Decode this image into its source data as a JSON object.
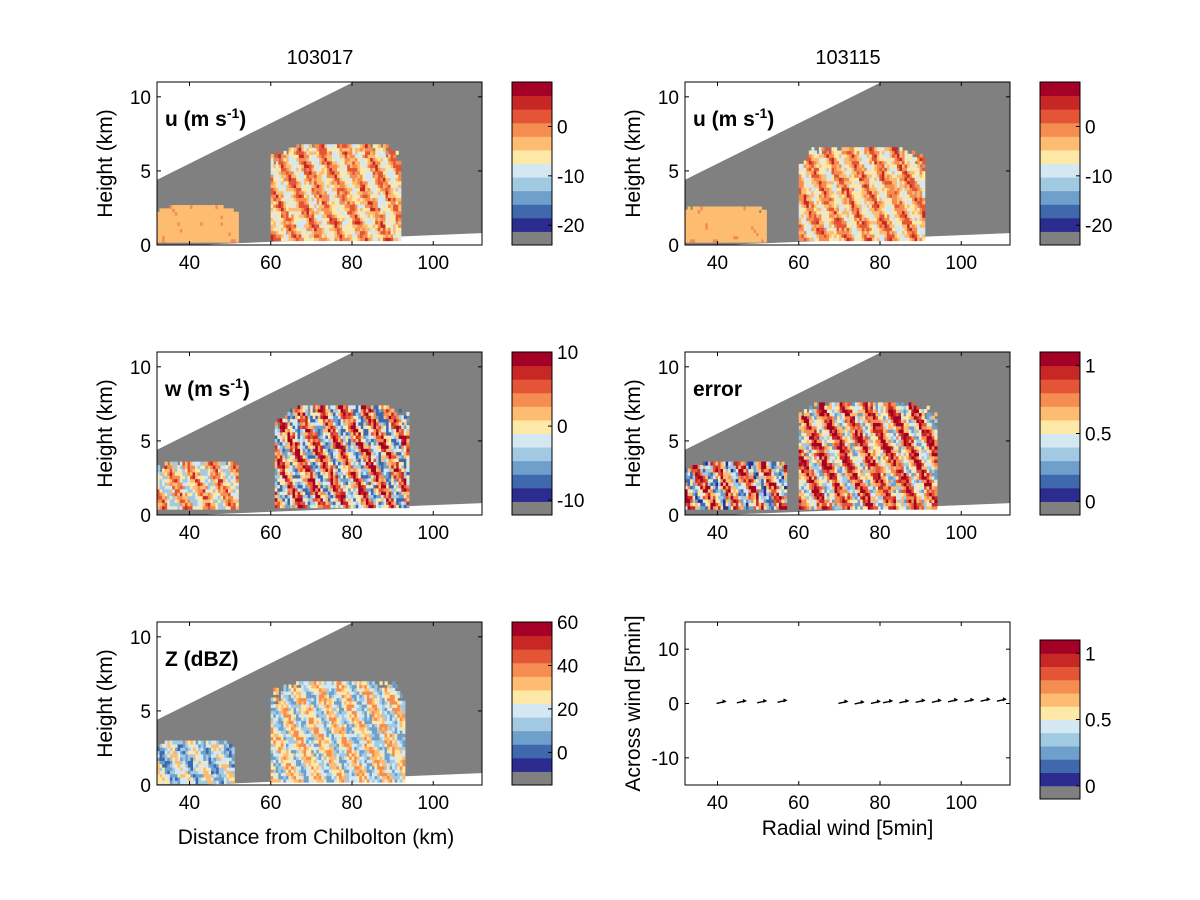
{
  "figure": {
    "column_titles": [
      "103017",
      "103115"
    ],
    "x_axis_label": "Distance from Chilbolton (km)",
    "y_axis_label": "Height (km)",
    "masked_color": "#808080",
    "colormap": [
      "#808080",
      "#2c2c90",
      "#3f68ad",
      "#6fa0cc",
      "#a2c9e2",
      "#d3e8f2",
      "#fde8a8",
      "#fdbc70",
      "#f58c50",
      "#e45436",
      "#c72725",
      "#a50026"
    ]
  },
  "chart_data": [
    {
      "id": "u-103017",
      "type": "heatmap",
      "inset_label": "u (m s",
      "inset_sup": "-1",
      "inset_tail": ")",
      "column": 0,
      "row": 0,
      "xlim": [
        32,
        112
      ],
      "ylim": [
        0,
        11
      ],
      "x_ticks": [
        40,
        60,
        80,
        100
      ],
      "y_ticks": [
        0,
        5,
        10
      ],
      "colorbar": {
        "ticks": [
          0,
          -10,
          -20
        ],
        "tick_labels": [
          "0",
          "-10",
          "-20"
        ],
        "range": [
          -24,
          9
        ]
      },
      "dominant_value": -4,
      "echoes": [
        {
          "x": [
            32,
            52
          ],
          "y": [
            0.2,
            2.7
          ],
          "v": [
            -5,
            -3
          ]
        },
        {
          "x": [
            60,
            92
          ],
          "y": [
            0.3,
            6.8
          ],
          "v": [
            -12,
            3
          ]
        }
      ]
    },
    {
      "id": "u-103115",
      "type": "heatmap",
      "inset_label": "u (m s",
      "inset_sup": "-1",
      "inset_tail": ")",
      "column": 1,
      "row": 0,
      "xlim": [
        32,
        112
      ],
      "ylim": [
        0,
        11
      ],
      "x_ticks": [
        40,
        60,
        80,
        100
      ],
      "y_ticks": [
        0,
        5,
        10
      ],
      "colorbar": {
        "ticks": [
          0,
          -10,
          -20
        ],
        "tick_labels": [
          "0",
          "-10",
          "-20"
        ],
        "range": [
          -24,
          9
        ]
      },
      "dominant_value": -4,
      "echoes": [
        {
          "x": [
            32,
            52
          ],
          "y": [
            0.2,
            2.6
          ],
          "v": [
            -5,
            -3
          ]
        },
        {
          "x": [
            60,
            91
          ],
          "y": [
            0.3,
            6.6
          ],
          "v": [
            -12,
            3
          ]
        }
      ]
    },
    {
      "id": "w-103017",
      "type": "heatmap",
      "inset_label": "w (m s",
      "inset_sup": "-1",
      "inset_tail": ")",
      "column": 0,
      "row": 1,
      "xlim": [
        32,
        112
      ],
      "ylim": [
        0,
        11
      ],
      "x_ticks": [
        40,
        60,
        80,
        100
      ],
      "y_ticks": [
        0,
        5,
        10
      ],
      "colorbar": {
        "ticks": [
          10,
          0,
          -10
        ],
        "tick_labels": [
          "10",
          "0",
          "-10"
        ],
        "range": [
          -12,
          10
        ]
      },
      "dominant_value": 0,
      "echoes": [
        {
          "x": [
            32,
            52
          ],
          "y": [
            0.4,
            3.6
          ],
          "v": [
            -6,
            6
          ]
        },
        {
          "x": [
            61,
            94
          ],
          "y": [
            0.5,
            7.4
          ],
          "v": [
            -10,
            10
          ]
        }
      ]
    },
    {
      "id": "error-103115",
      "type": "heatmap",
      "inset_label": "error",
      "inset_sup": "",
      "inset_tail": "",
      "column": 1,
      "row": 1,
      "xlim": [
        32,
        112
      ],
      "ylim": [
        0,
        11
      ],
      "x_ticks": [
        40,
        60,
        80,
        100
      ],
      "y_ticks": [
        0,
        5,
        10
      ],
      "colorbar": {
        "ticks": [
          1,
          0.5,
          0
        ],
        "tick_labels": [
          "1",
          "0.5",
          "0"
        ],
        "range": [
          -0.1,
          1.1
        ]
      },
      "dominant_value": 1.05,
      "echoes": [
        {
          "x": [
            32,
            57
          ],
          "y": [
            0.4,
            3.6
          ],
          "v": [
            0,
            1.1
          ]
        },
        {
          "x": [
            60,
            94
          ],
          "y": [
            0.4,
            7.6
          ],
          "v": [
            0.2,
            1.1
          ]
        }
      ]
    },
    {
      "id": "z-103017",
      "type": "heatmap",
      "inset_label": "Z (dBZ)",
      "inset_sup": "",
      "inset_tail": "",
      "column": 0,
      "row": 2,
      "xlim": [
        32,
        112
      ],
      "ylim": [
        0,
        11
      ],
      "x_ticks": [
        40,
        60,
        80,
        100
      ],
      "y_ticks": [
        0,
        5,
        10
      ],
      "colorbar": {
        "ticks": [
          60,
          40,
          20,
          0
        ],
        "tick_labels": [
          "60",
          "40",
          "20",
          "0"
        ],
        "range": [
          -15,
          60
        ]
      },
      "dominant_value": 10,
      "echoes": [
        {
          "x": [
            32,
            51
          ],
          "y": [
            0.1,
            3.0
          ],
          "v": [
            -5,
            30
          ]
        },
        {
          "x": [
            60,
            93
          ],
          "y": [
            0.2,
            7.0
          ],
          "v": [
            0,
            38
          ]
        }
      ]
    },
    {
      "id": "wind-vectors",
      "type": "scatter",
      "column": 1,
      "row": 2,
      "xlabel": "Radial wind [5min]",
      "ylabel": "Across wind [5min]",
      "xlim": [
        32,
        112
      ],
      "ylim": [
        -15,
        15
      ],
      "x_ticks": [
        40,
        60,
        80,
        100
      ],
      "y_ticks": [
        10,
        0,
        -10
      ],
      "colorbar": {
        "ticks": [
          1,
          0.5,
          0
        ],
        "tick_labels": [
          "1",
          "0.5",
          "0"
        ],
        "range": [
          -0.1,
          1.1
        ]
      },
      "x": [
        41,
        46,
        51,
        56,
        71,
        75,
        79,
        82,
        86,
        90,
        94,
        98,
        102,
        106,
        110
      ],
      "y": [
        0.2,
        0.3,
        0.3,
        0.4,
        0.2,
        0.1,
        0.2,
        0.3,
        0.3,
        0.4,
        0.4,
        0.5,
        0.5,
        0.6,
        0.6
      ]
    }
  ]
}
